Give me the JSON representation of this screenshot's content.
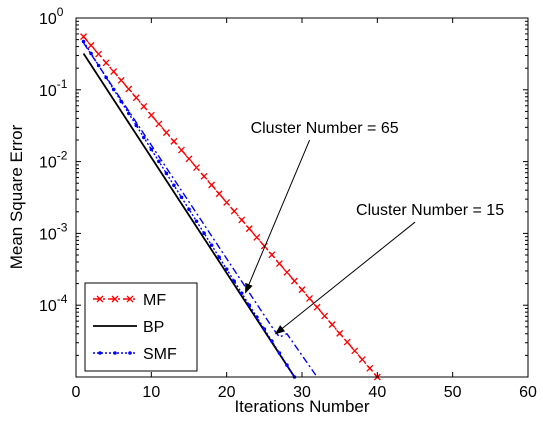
{
  "chart_data": {
    "type": "line",
    "xlabel": "Iterations Number",
    "ylabel": "Mean Square Error",
    "xlim": [
      0,
      60
    ],
    "ylim_log10": [
      -5,
      0
    ],
    "yscale": "log",
    "grid": false,
    "legend_position": "bottom-left",
    "x_ticks": [
      "0",
      "10",
      "20",
      "30",
      "40",
      "50",
      "60"
    ],
    "y_ticks": [
      {
        "base": "10",
        "exp": "0"
      },
      {
        "base": "10",
        "exp": "-1"
      },
      {
        "base": "10",
        "exp": "-2"
      },
      {
        "base": "10",
        "exp": "-3"
      },
      {
        "base": "10",
        "exp": "-4"
      }
    ],
    "series": [
      {
        "name": "MF",
        "color": "#ff0000",
        "style": "dash-dot",
        "marker": "x",
        "x": [
          1,
          40
        ],
        "y": [
          0.55,
          1e-05
        ]
      },
      {
        "name": "BP",
        "color": "#000000",
        "style": "solid",
        "marker": "none",
        "x": [
          1,
          29
        ],
        "y": [
          0.32,
          1e-05
        ]
      },
      {
        "name": "SMF",
        "color": "#0000ff",
        "style": "dotted",
        "marker": "dot",
        "x": [
          1,
          29
        ],
        "y": [
          0.47,
          1e-05
        ]
      },
      {
        "name": "",
        "color": "#0000ff",
        "style": "dash-dot",
        "marker": "none",
        "x": [
          1,
          26,
          27,
          28,
          32
        ],
        "y": [
          0.45,
          5e-05,
          3.6e-05,
          4e-05,
          1e-05
        ]
      }
    ],
    "annotations": [
      {
        "text": "Cluster Number = 65",
        "x": 33,
        "y": 0.025,
        "arrow_to": [
          22.5,
          0.00015
        ]
      },
      {
        "text": "Cluster Number = 15",
        "x": 47,
        "y": 0.0018,
        "arrow_to": [
          26.5,
          4e-05
        ]
      }
    ]
  }
}
